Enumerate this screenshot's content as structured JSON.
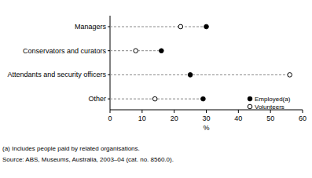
{
  "chart_data": {
    "type": "dot",
    "orientation": "horizontal",
    "categories": [
      "Managers",
      "Conservators and curators",
      "Attendants and security officers",
      "Other"
    ],
    "series": [
      {
        "name": "Employed(a)",
        "color": "#000000",
        "marker": "filled-circle",
        "values": [
          30,
          16,
          25,
          29
        ]
      },
      {
        "name": "Volunteers",
        "color": "#000000",
        "marker": "open-circle",
        "values": [
          22,
          8,
          56,
          14
        ]
      }
    ],
    "x_label": "%",
    "xlim": [
      0,
      60
    ],
    "xticks": [
      0,
      10,
      20,
      30,
      40,
      50,
      60
    ],
    "legend": "bottom-right",
    "footnote": "(a) Includes people paid by related organisations.",
    "source": "Source: ABS, Museums, Australia, 2003–04 (cat. no. 8560.0)."
  }
}
